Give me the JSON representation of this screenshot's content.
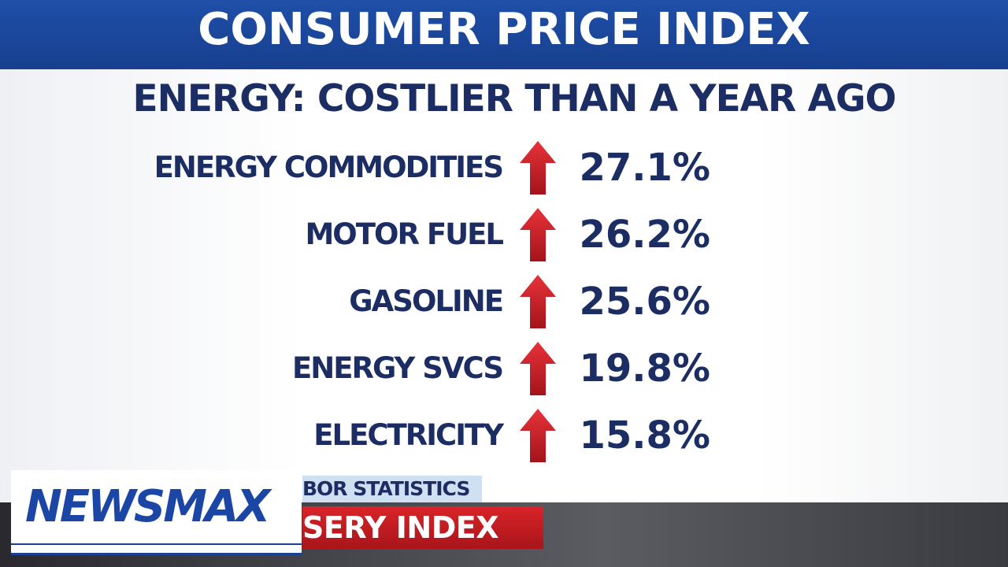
{
  "header": {
    "title": "CONSUMER PRICE INDEX"
  },
  "subtitle": "ENERGY: COSTLIER THAN A YEAR AGO",
  "rows": [
    {
      "label": "ENERGY COMMODITIES",
      "value": "27.1%"
    },
    {
      "label": "MOTOR FUEL",
      "value": "26.2%"
    },
    {
      "label": "GASOLINE",
      "value": "25.6%"
    },
    {
      "label": "ENERGY SVCS",
      "value": "19.8%"
    },
    {
      "label": "ELECTRICITY",
      "value": "15.8%"
    }
  ],
  "source_fragment": "BOR STATISTICS",
  "ticker": "SERY INDEX",
  "logo": "NEWSMAX"
}
